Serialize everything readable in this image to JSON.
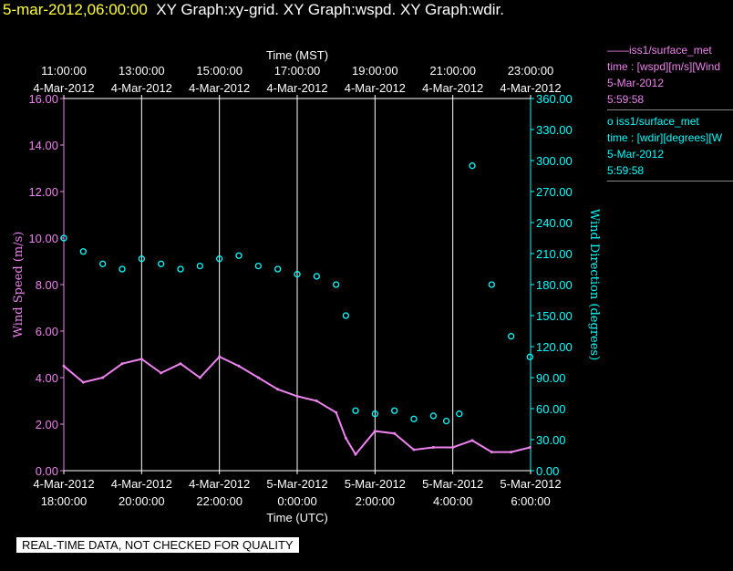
{
  "header": {
    "timestamp": "5-mar-2012,06:00:00",
    "graphs": "XY Graph:xy-grid.  XY Graph:wspd.  XY Graph:wdir."
  },
  "legend": [
    {
      "marker": "——",
      "name": "iss1/surface_met",
      "field": "time : [wspd][m/s][Wind",
      "date": "5-Mar-2012",
      "time": "5:59:58",
      "color": "#ee82ee"
    },
    {
      "marker": "o",
      "name": "iss1/surface_met",
      "field": "time : [wdir][degrees][W",
      "date": "5-Mar-2012",
      "time": "5:59:58",
      "color": "#00ffff"
    }
  ],
  "notice": "REAL-TIME DATA, NOT CHECKED FOR QUALITY",
  "chart_data": {
    "type": "line",
    "x_bottom_label": "Time (UTC)",
    "x_top_label": "Time (MST)",
    "xlim_hours_utc": [
      18,
      30
    ],
    "x_bottom_ticks": [
      {
        "date": "4-Mar-2012",
        "time": "18:00:00"
      },
      {
        "date": "4-Mar-2012",
        "time": "20:00:00"
      },
      {
        "date": "4-Mar-2012",
        "time": "22:00:00"
      },
      {
        "date": "5-Mar-2012",
        "time": "0:00:00"
      },
      {
        "date": "5-Mar-2012",
        "time": "2:00:00"
      },
      {
        "date": "5-Mar-2012",
        "time": "4:00:00"
      },
      {
        "date": "5-Mar-2012",
        "time": "6:00:00"
      }
    ],
    "x_top_ticks": [
      {
        "time": "11:00:00",
        "date": "4-Mar-2012"
      },
      {
        "time": "13:00:00",
        "date": "4-Mar-2012"
      },
      {
        "time": "15:00:00",
        "date": "4-Mar-2012"
      },
      {
        "time": "17:00:00",
        "date": "4-Mar-2012"
      },
      {
        "time": "19:00:00",
        "date": "4-Mar-2012"
      },
      {
        "time": "21:00:00",
        "date": "4-Mar-2012"
      },
      {
        "time": "23:00:00",
        "date": "4-Mar-2012"
      }
    ],
    "y_left": {
      "label": "Wind Speed (m/s)",
      "range": [
        0,
        16
      ],
      "ticks": [
        "0.00",
        "2.00",
        "4.00",
        "6.00",
        "8.00",
        "10.00",
        "12.00",
        "14.00",
        "16.00"
      ],
      "color": "#ee82ee"
    },
    "y_right": {
      "label": "Wind Direction (degrees)",
      "range": [
        0,
        360
      ],
      "ticks": [
        "0.00",
        "30.00",
        "60.00",
        "90.00",
        "120.00",
        "150.00",
        "180.00",
        "210.00",
        "240.00",
        "270.00",
        "300.00",
        "330.00",
        "360.00"
      ],
      "color": "#00ffff"
    },
    "grid": true,
    "series": [
      {
        "name": "iss1/surface_met wspd",
        "axis": "left",
        "style": "line",
        "color": "#ee82ee",
        "x": [
          "4-Mar-2012 18:00",
          "4-Mar-2012 18:30",
          "4-Mar-2012 19:00",
          "4-Mar-2012 19:30",
          "4-Mar-2012 20:00",
          "4-Mar-2012 20:30",
          "4-Mar-2012 21:00",
          "4-Mar-2012 21:30",
          "4-Mar-2012 22:00",
          "4-Mar-2012 22:30",
          "4-Mar-2012 23:00",
          "4-Mar-2012 23:30",
          "5-Mar-2012 0:00",
          "5-Mar-2012 0:30",
          "5-Mar-2012 1:00",
          "5-Mar-2012 1:15",
          "5-Mar-2012 1:30",
          "5-Mar-2012 2:00",
          "5-Mar-2012 2:30",
          "5-Mar-2012 3:00",
          "5-Mar-2012 3:30",
          "5-Mar-2012 4:00",
          "5-Mar-2012 4:30",
          "5-Mar-2012 5:00",
          "5-Mar-2012 5:30",
          "5-Mar-2012 5:59"
        ],
        "y": [
          4.5,
          3.8,
          4.0,
          4.6,
          4.8,
          4.2,
          4.6,
          4.0,
          4.9,
          4.5,
          4.0,
          3.5,
          3.2,
          3.0,
          2.5,
          1.4,
          0.7,
          1.7,
          1.6,
          0.9,
          1.0,
          1.0,
          1.3,
          0.8,
          0.8,
          1.0
        ]
      },
      {
        "name": "iss1/surface_met wdir",
        "axis": "right",
        "style": "markers",
        "color": "#00ffff",
        "x": [
          "4-Mar-2012 18:00",
          "4-Mar-2012 18:30",
          "4-Mar-2012 19:00",
          "4-Mar-2012 19:30",
          "4-Mar-2012 20:00",
          "4-Mar-2012 20:30",
          "4-Mar-2012 21:00",
          "4-Mar-2012 21:30",
          "4-Mar-2012 22:00",
          "4-Mar-2012 22:30",
          "4-Mar-2012 23:00",
          "4-Mar-2012 23:30",
          "5-Mar-2012 0:00",
          "5-Mar-2012 0:30",
          "5-Mar-2012 1:00",
          "5-Mar-2012 1:15",
          "5-Mar-2012 1:30",
          "5-Mar-2012 2:00",
          "5-Mar-2012 2:30",
          "5-Mar-2012 3:00",
          "5-Mar-2012 3:30",
          "5-Mar-2012 3:50",
          "5-Mar-2012 4:10",
          "5-Mar-2012 4:30",
          "5-Mar-2012 5:00",
          "5-Mar-2012 5:30",
          "5-Mar-2012 5:59"
        ],
        "y": [
          225,
          212,
          200,
          195,
          205,
          200,
          195,
          198,
          205,
          208,
          198,
          195,
          190,
          188,
          180,
          150,
          58,
          55,
          58,
          50,
          53,
          48,
          55,
          295,
          180,
          130,
          110
        ]
      }
    ]
  }
}
